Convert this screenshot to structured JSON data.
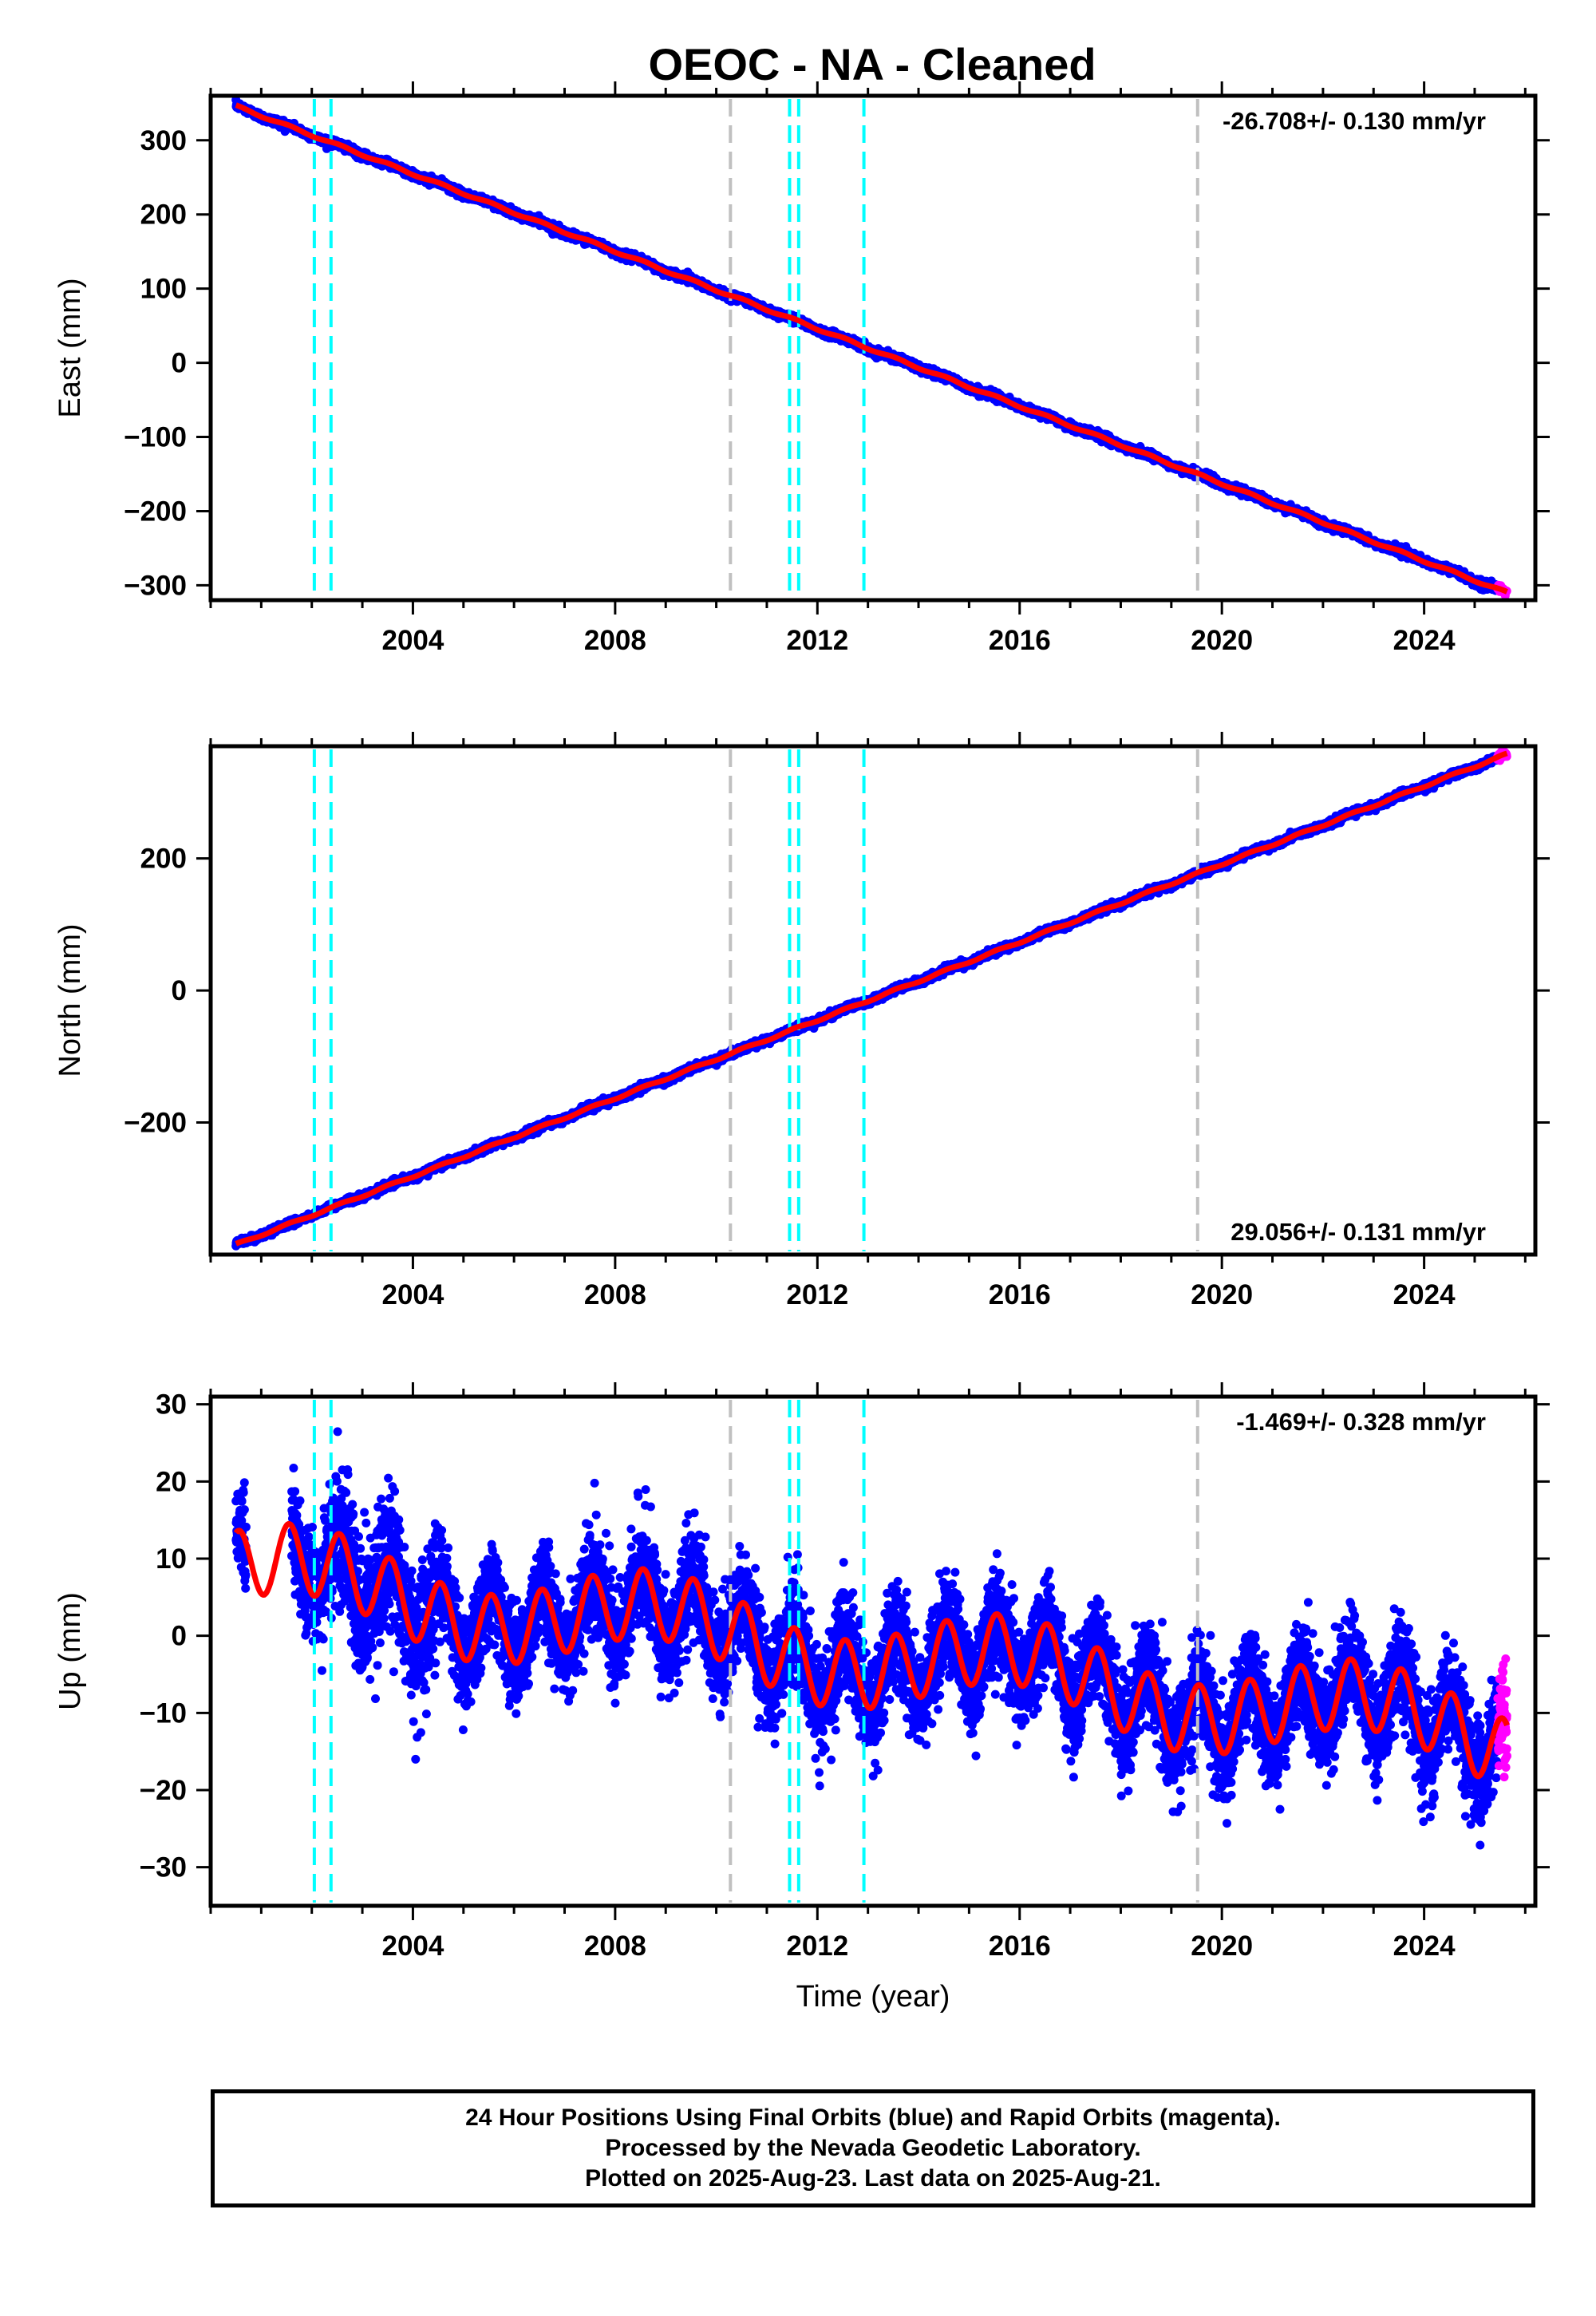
{
  "title": "OEOC  - NA - Cleaned",
  "footer": {
    "line1": "24 Hour Positions Using Final Orbits (blue) and Rapid Orbits (magenta).",
    "line2": "Processed by the Nevada Geodetic Laboratory.",
    "line3": "Plotted on 2025-Aug-23. Last data on 2025-Aug-21."
  },
  "colors": {
    "final": "#0000ff",
    "rapid": "#ff00ff",
    "model": "#ff0000",
    "equipment_change": "#00ffff",
    "other_offset": "#c0c0c0"
  },
  "chart_data": [
    {
      "type": "scatter",
      "component": "east",
      "ylabel": "East (mm)",
      "xlabel": "",
      "xlim": [
        2000.0,
        2026.2
      ],
      "ylim": [
        -320,
        360
      ],
      "yticks": [
        -300,
        -200,
        -100,
        0,
        100,
        200,
        300
      ],
      "xticks": [
        2004,
        2008,
        2012,
        2016,
        2020,
        2024
      ],
      "rate_text": "-26.708+/- 0.130 mm/yr",
      "rate_mm_per_yr": -26.708,
      "rate_sigma": 0.13,
      "data_start": 2000.5,
      "data_end": 2025.64,
      "rapid_start": 2025.45,
      "value_at_start": 346,
      "value_at_end": -310,
      "seasonal_amplitude_mm": 1.5,
      "noise_mm": 2.5,
      "offsets": {
        "equipment_change": [
          2002.05,
          2002.38,
          2011.45,
          2011.63,
          2012.92
        ],
        "other": [
          2010.28,
          2019.52
        ]
      }
    },
    {
      "type": "scatter",
      "component": "north",
      "ylabel": "North (mm)",
      "xlabel": "",
      "xlim": [
        2000.0,
        2026.2
      ],
      "ylim": [
        -400,
        370
      ],
      "yticks": [
        -200,
        0,
        200
      ],
      "xticks": [
        2004,
        2008,
        2012,
        2016,
        2020,
        2024
      ],
      "rate_text": "29.056+/- 0.131 mm/yr",
      "rate_mm_per_yr": 29.056,
      "rate_sigma": 0.131,
      "data_start": 2000.5,
      "data_end": 2025.64,
      "rapid_start": 2025.45,
      "value_at_start": -385,
      "value_at_end": 358,
      "seasonal_amplitude_mm": 1.5,
      "noise_mm": 2.5,
      "offsets": {
        "equipment_change": [
          2002.05,
          2002.38,
          2011.45,
          2011.63,
          2012.92
        ],
        "other": [
          2010.28,
          2019.52
        ]
      }
    },
    {
      "type": "scatter",
      "component": "up",
      "ylabel": "Up (mm)",
      "xlabel": "Time (year)",
      "xlim": [
        2000.0,
        2026.2
      ],
      "ylim": [
        -35,
        31
      ],
      "yticks": [
        -30,
        -20,
        -10,
        0,
        10,
        20,
        30
      ],
      "xticks": [
        2004,
        2008,
        2012,
        2016,
        2020,
        2024
      ],
      "rate_text": "-1.469+/- 0.328 mm/yr",
      "rate_mm_per_yr": -1.469,
      "rate_sigma": 0.328,
      "data_start": 2000.5,
      "data_end": 2025.64,
      "rapid_start": 2025.45,
      "value_at_start": 10,
      "value_at_end": -11,
      "seasonal_amplitude_mm": 4.5,
      "noise_mm": 3.2,
      "offsets": {
        "equipment_change": [
          2002.05,
          2002.38,
          2011.45,
          2011.63,
          2012.92
        ],
        "other": [
          2010.28,
          2019.52
        ]
      }
    }
  ]
}
